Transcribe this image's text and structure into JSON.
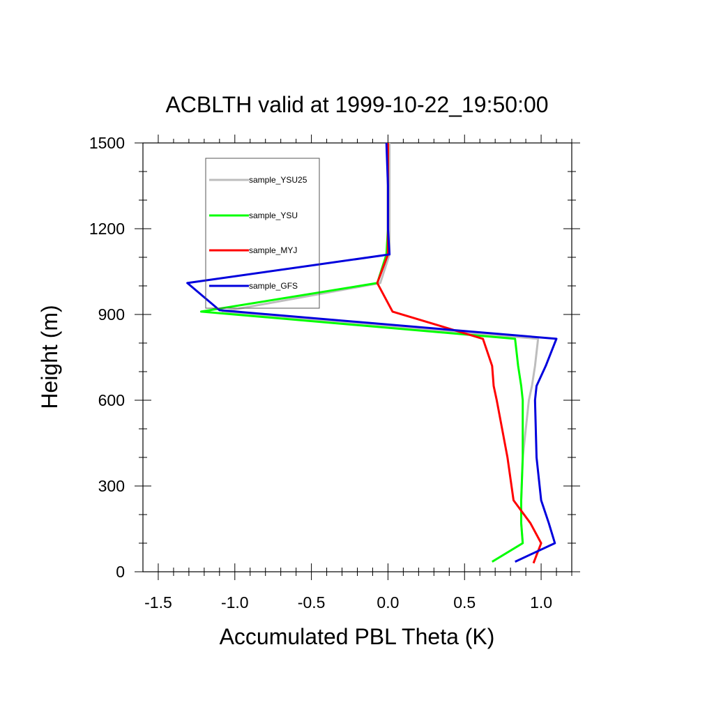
{
  "chart_data": {
    "type": "line",
    "title": "ACBLTH valid at 1999-10-22_19:50:00",
    "xlabel": "Accumulated PBL Theta (K)",
    "ylabel": "Height (m)",
    "xlim": [
      -1.6,
      1.2
    ],
    "ylim": [
      0,
      1500
    ],
    "x_ticks": [
      -1.5,
      -1.0,
      -0.5,
      0.0,
      0.5,
      1.0
    ],
    "x_tick_labels": [
      "-1.5",
      "-1.0",
      "-0.5",
      "0.0",
      "0.5",
      "1.0"
    ],
    "y_ticks": [
      0,
      300,
      600,
      900,
      1200,
      1500
    ],
    "y_tick_labels": [
      "0",
      "300",
      "600",
      "900",
      "1200",
      "1500"
    ],
    "grid": false,
    "legend_position": "top-left",
    "series": [
      {
        "name": "sample_YSU25",
        "color": "#bdbdbd",
        "x": [
          0.68,
          0.88,
          0.87,
          0.87,
          0.88,
          0.92,
          0.94,
          0.96,
          0.98,
          -1.08,
          -0.05,
          0.01,
          0.01,
          0.01,
          0.01
        ],
        "y": [
          35,
          100,
          170,
          250,
          400,
          600,
          650,
          720,
          815,
          910,
          1010,
          1110,
          1200,
          1350,
          1500
        ]
      },
      {
        "name": "sample_YSU",
        "color": "#00ff00",
        "x": [
          0.68,
          0.88,
          0.87,
          0.87,
          0.88,
          0.88,
          0.87,
          0.85,
          0.83,
          -1.22,
          -0.07,
          -0.01,
          0.0,
          0.0,
          0.0
        ],
        "y": [
          35,
          100,
          170,
          250,
          400,
          600,
          650,
          720,
          815,
          910,
          1010,
          1110,
          1200,
          1350,
          1500
        ]
      },
      {
        "name": "sample_MYJ",
        "color": "#ff0000",
        "x": [
          0.95,
          1.0,
          0.93,
          0.82,
          0.78,
          0.71,
          0.69,
          0.68,
          0.62,
          0.03,
          -0.07,
          0.0,
          0.0,
          0.0,
          0.0
        ],
        "y": [
          30,
          100,
          170,
          250,
          400,
          600,
          650,
          720,
          815,
          910,
          1010,
          1110,
          1200,
          1350,
          1500
        ]
      },
      {
        "name": "sample_GFS",
        "color": "#0000dd",
        "x": [
          0.83,
          1.09,
          1.05,
          1.0,
          0.97,
          0.96,
          0.97,
          1.03,
          1.1,
          -1.1,
          -1.31,
          0.01,
          0.0,
          0.0,
          -0.01
        ],
        "y": [
          35,
          100,
          170,
          250,
          400,
          600,
          650,
          720,
          815,
          915,
          1010,
          1110,
          1200,
          1350,
          1500
        ]
      }
    ]
  }
}
